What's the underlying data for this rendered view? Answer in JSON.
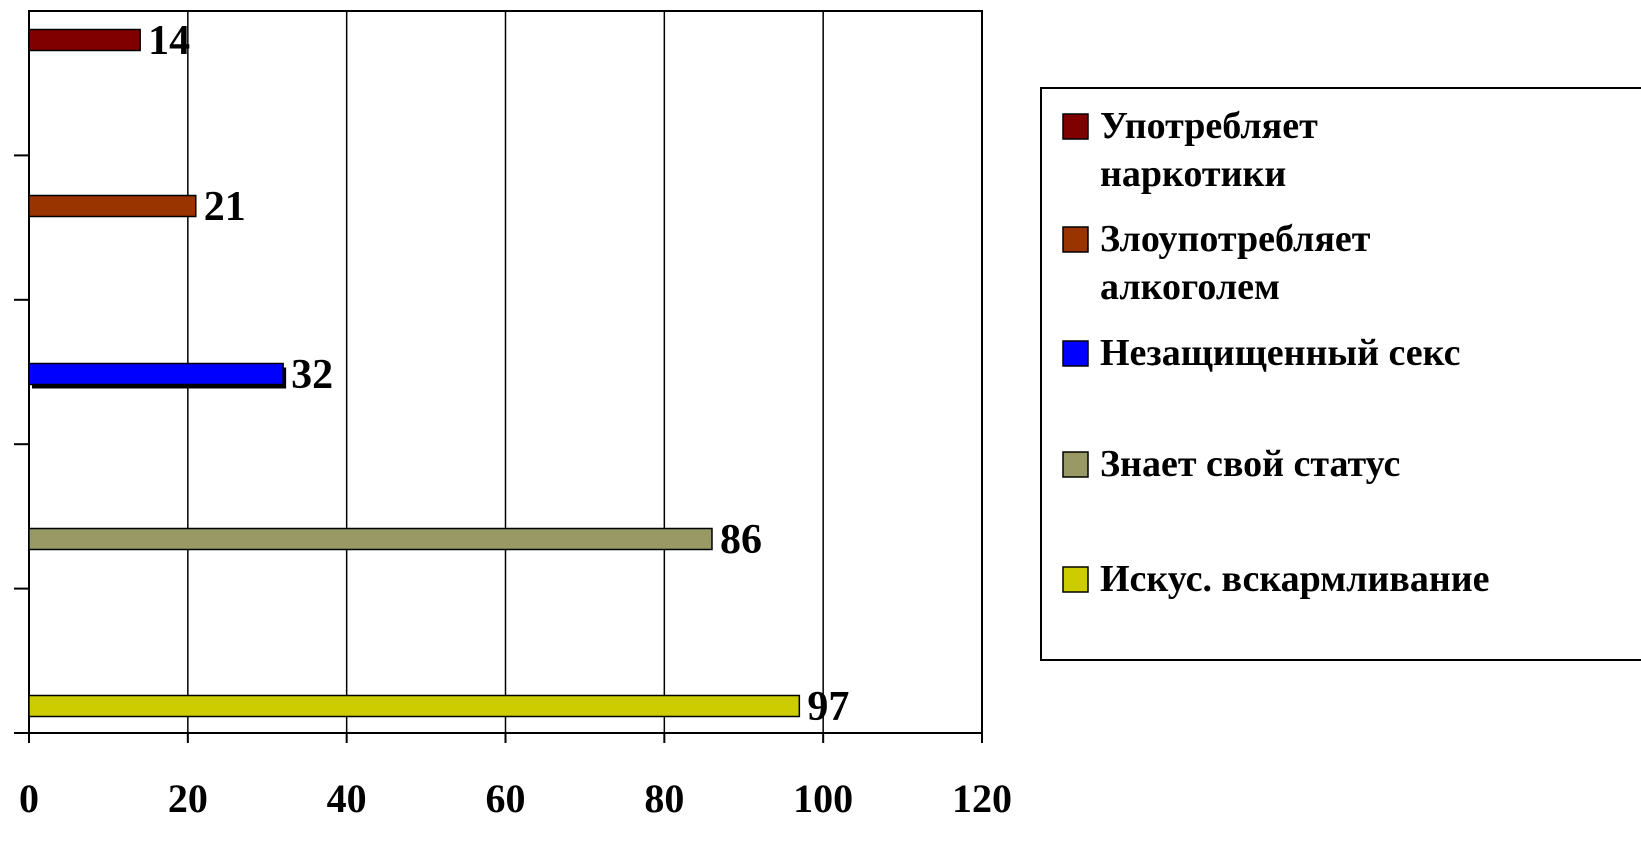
{
  "chart_data": {
    "type": "bar",
    "orientation": "horizontal",
    "xlim": [
      0,
      120
    ],
    "x_ticks": [
      "0",
      "20",
      "40",
      "60",
      "80",
      "100",
      "120"
    ],
    "grid": "vertical",
    "legend_position": "right",
    "series": [
      {
        "name": "Употребляет наркотики",
        "legend_lines": [
          "Употребляет",
          "наркотики"
        ],
        "value": 14,
        "label": "14",
        "color": "#800000"
      },
      {
        "name": "Злоупотребляет алкоголем",
        "legend_lines": [
          "Злоупотребляет",
          "алкоголем"
        ],
        "value": 21,
        "label": "21",
        "color": "#993300"
      },
      {
        "name": "Незащищенный секс",
        "legend_lines": [
          "Незащищенный секс"
        ],
        "value": 32,
        "label": "32",
        "color": "#0000ff"
      },
      {
        "name": "Знает свой статус",
        "legend_lines": [
          " Знает свой статус"
        ],
        "value": 86,
        "label": "86",
        "color": "#999966"
      },
      {
        "name": "Искус. вскармливание",
        "legend_lines": [
          "Искус. вскармливание"
        ],
        "value": 97,
        "label": "97",
        "color": "#cccc00"
      }
    ]
  }
}
